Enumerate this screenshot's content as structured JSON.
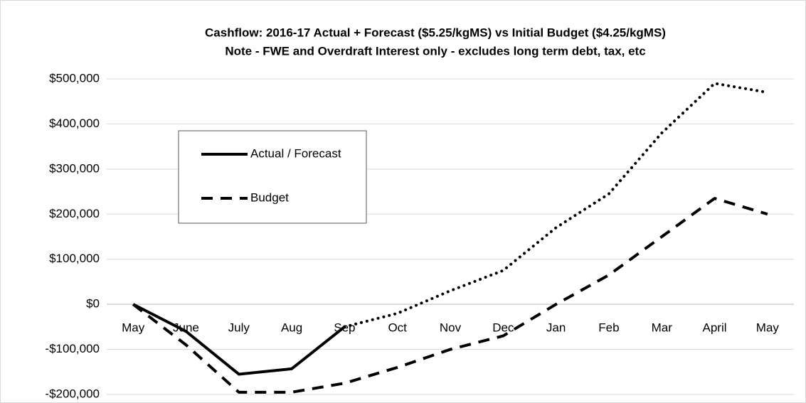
{
  "chart_data": {
    "type": "line",
    "title": "Cashflow: 2016-17 Actual + Forecast ($5.25/kgMS) vs Initial Budget ($4.25/kgMS)",
    "subtitle": "Note - FWE and Overdraft Interest only - excludes  long term debt, tax, etc",
    "categories": [
      "May",
      "June",
      "July",
      "Aug",
      "Sep",
      "Oct",
      "Nov",
      "Dec",
      "Jan",
      "Feb",
      "Mar",
      "April",
      "May"
    ],
    "series": [
      {
        "name": "Actual / Forecast",
        "color": "#000000",
        "style": "solid",
        "values": [
          0,
          -60000,
          -155000,
          -143000,
          -50000,
          null,
          null,
          null,
          null,
          null,
          null,
          null,
          null
        ]
      },
      {
        "color": "#000000",
        "style": "dotted",
        "values": [
          null,
          null,
          null,
          null,
          -50000,
          -20000,
          30000,
          75000,
          170000,
          245000,
          380000,
          490000,
          470000
        ]
      },
      {
        "name": "Budget",
        "color": "#000000",
        "style": "dashed",
        "values": [
          0,
          -90000,
          -195000,
          -195000,
          -175000,
          -140000,
          -100000,
          -70000,
          0,
          65000,
          150000,
          235000,
          200000
        ]
      }
    ],
    "ylim": [
      -200000,
      500000
    ],
    "yticks": [
      {
        "value": -200000,
        "label": "-$200,000"
      },
      {
        "value": -100000,
        "label": "-$100,000"
      },
      {
        "value": 0,
        "label": "$0"
      },
      {
        "value": 100000,
        "label": "$100,000"
      },
      {
        "value": 200000,
        "label": "$200,000"
      },
      {
        "value": 300000,
        "label": "$300,000"
      },
      {
        "value": 400000,
        "label": "$400,000"
      },
      {
        "value": 500000,
        "label": "$500,000"
      }
    ],
    "grid": true,
    "legend": "upper left"
  }
}
